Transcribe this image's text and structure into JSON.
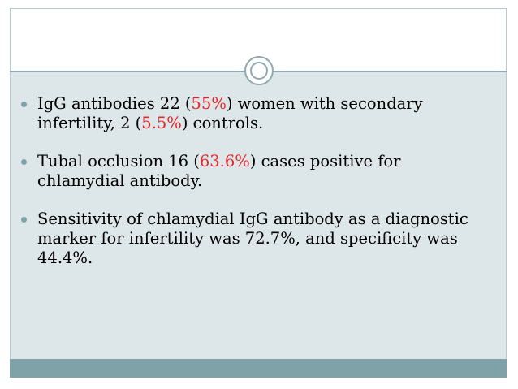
{
  "bullets": [
    {
      "parts": [
        {
          "text": "IgG antibodies 22 (",
          "color": "#000000"
        },
        {
          "text": "55%",
          "color": "#e8262a"
        },
        {
          "text": ") women with secondary infertility, 2 (",
          "color": "#000000"
        },
        {
          "text": "5.5%",
          "color": "#e8262a"
        },
        {
          "text": ") controls.",
          "color": "#000000"
        }
      ]
    },
    {
      "parts": [
        {
          "text": "Tubal occlusion  16 (",
          "color": "#000000"
        },
        {
          "text": "63.6%",
          "color": "#e8262a"
        },
        {
          "text": ") cases positive for chlamydial antibody.",
          "color": "#000000"
        }
      ]
    },
    {
      "parts": [
        {
          "text": "Sensitivity of chlamydial IgG antibody as a diagnostic marker for infertility was 72.7%, and specificity was 44.4%.",
          "color": "#000000"
        }
      ]
    }
  ],
  "colors": {
    "accent": "#7ea2a8",
    "panel": "#dde6e8",
    "highlight": "#e8262a"
  }
}
